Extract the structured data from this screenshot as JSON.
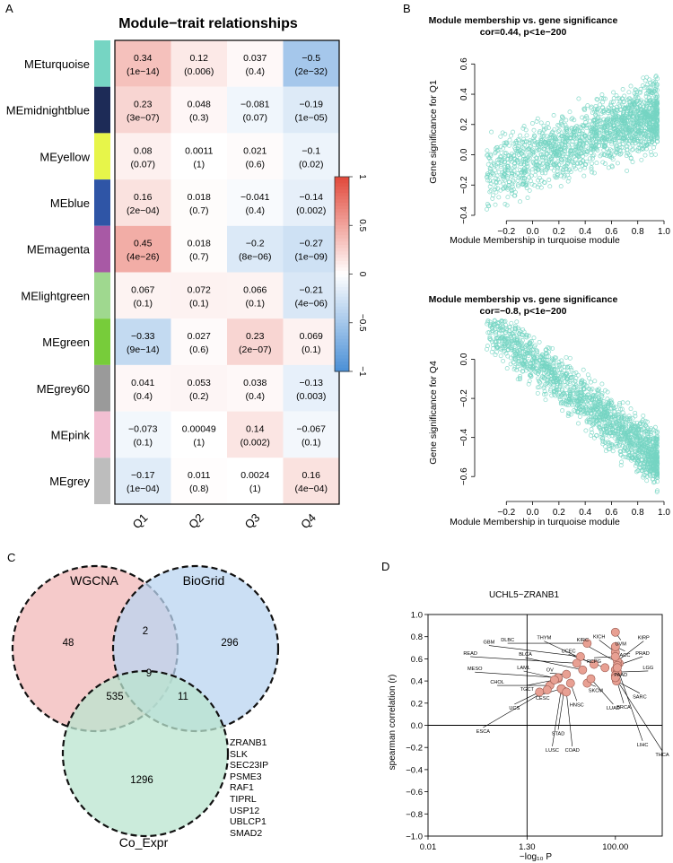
{
  "panels": {
    "A": "A",
    "B": "B",
    "C": "C",
    "D": "D"
  },
  "chart_data": [
    {
      "type": "heatmap",
      "title": "Module−trait relationships",
      "rows": [
        "MEturquoise",
        "MEmidnightblue",
        "MEyellow",
        "MEblue",
        "MEmagenta",
        "MElightgreen",
        "MEgreen",
        "MEgrey60",
        "MEpink",
        "MEgrey"
      ],
      "row_colors": [
        "#76d5c3",
        "#1d2b57",
        "#e7f54a",
        "#2f55a6",
        "#a859a5",
        "#9fd88f",
        "#77cc3a",
        "#9a9a9a",
        "#f2bfd2",
        "#bdbdbd"
      ],
      "columns": [
        "Q1",
        "Q2",
        "Q3",
        "Q4"
      ],
      "values": [
        [
          0.34,
          0.12,
          0.037,
          -0.5
        ],
        [
          0.23,
          0.048,
          -0.081,
          -0.19
        ],
        [
          0.08,
          0.0011,
          0.021,
          -0.1
        ],
        [
          0.16,
          0.018,
          -0.041,
          -0.14
        ],
        [
          0.45,
          0.018,
          -0.2,
          -0.27
        ],
        [
          0.067,
          0.072,
          0.066,
          -0.21
        ],
        [
          -0.33,
          0.027,
          0.23,
          0.069
        ],
        [
          0.041,
          0.053,
          0.038,
          -0.13
        ],
        [
          -0.073,
          0.00049,
          0.14,
          -0.067
        ],
        [
          -0.17,
          0.011,
          0.0024,
          0.16
        ]
      ],
      "value_labels": [
        [
          "0.34",
          "0.12",
          "0.037",
          "−0.5"
        ],
        [
          "0.23",
          "0.048",
          "−0.081",
          "−0.19"
        ],
        [
          "0.08",
          "0.0011",
          "0.021",
          "−0.1"
        ],
        [
          "0.16",
          "0.018",
          "−0.041",
          "−0.14"
        ],
        [
          "0.45",
          "0.018",
          "−0.2",
          "−0.27"
        ],
        [
          "0.067",
          "0.072",
          "0.066",
          "−0.21"
        ],
        [
          "−0.33",
          "0.027",
          "0.23",
          "0.069"
        ],
        [
          "0.041",
          "0.053",
          "0.038",
          "−0.13"
        ],
        [
          "−0.073",
          "0.00049",
          "0.14",
          "−0.067"
        ],
        [
          "−0.17",
          "0.011",
          "0.0024",
          "0.16"
        ]
      ],
      "pvalues": [
        [
          "(1e−14)",
          "(0.006)",
          "(0.4)",
          "(2e−32)"
        ],
        [
          "(3e−07)",
          "(0.3)",
          "(0.07)",
          "(1e−05)"
        ],
        [
          "(0.07)",
          "(1)",
          "(0.6)",
          "(0.02)"
        ],
        [
          "(2e−04)",
          "(0.7)",
          "(0.4)",
          "(0.002)"
        ],
        [
          "(4e−26)",
          "(0.7)",
          "(8e−06)",
          "(1e−09)"
        ],
        [
          "(0.1)",
          "(0.1)",
          "(0.1)",
          "(4e−06)"
        ],
        [
          "(9e−14)",
          "(0.6)",
          "(2e−07)",
          "(0.1)"
        ],
        [
          "(0.4)",
          "(0.2)",
          "(0.4)",
          "(0.003)"
        ],
        [
          "(0.1)",
          "(1)",
          "(0.002)",
          "(0.1)"
        ],
        [
          "(1e−04)",
          "(0.8)",
          "(1)",
          "(4e−04)"
        ]
      ],
      "colorbar": {
        "range": [
          -1,
          1
        ],
        "ticks": [
          "−1",
          "−0.5",
          "0",
          "0.5",
          "1"
        ],
        "low": "#4a8fd6",
        "mid": "#ffffff",
        "high": "#e2483a"
      }
    },
    {
      "type": "scatter",
      "title": "Module membership vs. gene significance",
      "subtitle": "cor=0.44, p<1e−200",
      "xlabel": "Module Membership in turquoise module",
      "ylabel": "Gene significance for  Q1",
      "xlim": [
        -0.4,
        1.0
      ],
      "ylim": [
        -0.4,
        0.75
      ],
      "xticks": [
        "−0.2",
        "0.0",
        "0.2",
        "0.4",
        "0.6",
        "0.8",
        "1.0"
      ],
      "yticks": [
        "−0.4",
        "−0.2",
        "0.0",
        "0.2",
        "0.4",
        "0.6"
      ],
      "point_color": "#76d5c3"
    },
    {
      "type": "scatter",
      "title": "Module membership vs. gene significance",
      "subtitle": "cor=−0.8, p<1e−200",
      "xlabel": "Module Membership in turquoise module",
      "ylabel": "Gene significance for  Q4",
      "xlim": [
        -0.4,
        1.0
      ],
      "ylim": [
        -0.7,
        0.2
      ],
      "xticks": [
        "−0.2",
        "0.0",
        "0.2",
        "0.4",
        "0.6",
        "0.8",
        "1.0"
      ],
      "yticks": [
        "−0.6",
        "−0.4",
        "−0.2",
        "0.0"
      ],
      "point_color": "#76d5c3"
    },
    {
      "type": "venn",
      "sets": [
        "WGCNA",
        "BioGrid",
        "Co_Expr"
      ],
      "set_colors": [
        "#f2b8b8",
        "#b9d4f0",
        "#b9e4cf"
      ],
      "regions": {
        "WGCNA_only": "48",
        "BioGrid_only": "296",
        "Co_Expr_only": "1296",
        "WGCNA_BioGrid": "2",
        "WGCNA_Co_Expr": "535",
        "BioGrid_Co_Expr": "11",
        "all_three": "9"
      },
      "genes_in_all_three": [
        "ZRANB1",
        "SLK",
        "SEC23IP",
        "PSME3",
        "RAF1",
        "TIPRL",
        "USP12",
        "UBLCP1",
        "SMAD2"
      ]
    },
    {
      "type": "scatter",
      "title": "UCHL5~ZRANB1",
      "xlabel": "−log₁₀ P",
      "ylabel": "spearman correlation (r)",
      "xscale": "log",
      "xlim": [
        0.01,
        1000
      ],
      "xticks": [
        {
          "v": 0.01,
          "t": "0.01"
        },
        {
          "v": 1.3,
          "t": "1.30"
        },
        {
          "v": 100,
          "t": "100.00"
        }
      ],
      "ylim": [
        -1.0,
        1.0
      ],
      "yticks": [
        "−1.0",
        "−0.8",
        "−0.6",
        "−0.4",
        "−0.2",
        "0.0",
        "0.2",
        "0.4",
        "0.6",
        "0.8",
        "1.0"
      ],
      "vline_x": 1.3,
      "hline_y": 0.0,
      "point_color": "#e8a093",
      "points": [
        {
          "label": "GBM",
          "x": 18,
          "y": 0.62,
          "lx": 0.2,
          "ly": 0.72
        },
        {
          "label": "DLBC",
          "x": 25,
          "y": 0.74,
          "lx": 0.5,
          "ly": 0.74
        },
        {
          "label": "THYM",
          "x": 35,
          "y": 0.55,
          "lx": 3.0,
          "ly": 0.76
        },
        {
          "label": "KIRC",
          "x": 120,
          "y": 0.56,
          "lx": 20,
          "ly": 0.74
        },
        {
          "label": "KICH",
          "x": 100,
          "y": 0.66,
          "lx": 45,
          "ly": 0.77
        },
        {
          "label": "UVM",
          "x": 100,
          "y": 0.84,
          "lx": 130,
          "ly": 0.77
        },
        {
          "label": "KIRP",
          "x": 110,
          "y": 0.58,
          "lx": 400,
          "ly": 0.76
        },
        {
          "label": "UCEC",
          "x": 60,
          "y": 0.52,
          "lx": 10,
          "ly": 0.64
        },
        {
          "label": "PCPG",
          "x": 100,
          "y": 0.62,
          "lx": 35,
          "ly": 0.61
        },
        {
          "label": "ACC",
          "x": 100,
          "y": 0.71,
          "lx": 160,
          "ly": 0.67
        },
        {
          "label": "PRAD",
          "x": 110,
          "y": 0.54,
          "lx": 380,
          "ly": 0.62
        },
        {
          "label": "BLCA",
          "x": 20,
          "y": 0.5,
          "lx": 1.2,
          "ly": 0.61
        },
        {
          "label": "READ",
          "x": 15,
          "y": 0.56,
          "lx": 0.08,
          "ly": 0.62
        },
        {
          "label": "PAAD",
          "x": 100,
          "y": 0.5,
          "lx": 130,
          "ly": 0.49
        },
        {
          "label": "LGG",
          "x": 110,
          "y": 0.48,
          "lx": 500,
          "ly": 0.49
        },
        {
          "label": "LAML",
          "x": 6,
          "y": 0.42,
          "lx": 1.1,
          "ly": 0.49
        },
        {
          "label": "OV",
          "x": 9,
          "y": 0.46,
          "lx": 4,
          "ly": 0.47
        },
        {
          "label": "MESO",
          "x": 6,
          "y": 0.43,
          "lx": 0.1,
          "ly": 0.48
        },
        {
          "label": "SARC",
          "x": 105,
          "y": 0.4,
          "lx": 330,
          "ly": 0.29
        },
        {
          "label": "SKCM",
          "x": 25,
          "y": 0.38,
          "lx": 38,
          "ly": 0.35
        },
        {
          "label": "CHOL",
          "x": 4,
          "y": 0.36,
          "lx": 0.3,
          "ly": 0.36
        },
        {
          "label": "TGCT",
          "x": 5,
          "y": 0.41,
          "lx": 1.3,
          "ly": 0.36
        },
        {
          "label": "CESC",
          "x": 7,
          "y": 0.33,
          "lx": 2.8,
          "ly": 0.28
        },
        {
          "label": "HNSC",
          "x": 11,
          "y": 0.38,
          "lx": 15,
          "ly": 0.22
        },
        {
          "label": "UCS",
          "x": 2.4,
          "y": 0.3,
          "lx": 0.7,
          "ly": 0.19
        },
        {
          "label": "BRCA",
          "x": 100,
          "y": 0.45,
          "lx": 150,
          "ly": 0.2
        },
        {
          "label": "LUAD",
          "x": 30,
          "y": 0.42,
          "lx": 90,
          "ly": 0.19
        },
        {
          "label": "ESCA",
          "x": 3.5,
          "y": 0.32,
          "lx": 0.15,
          "ly": -0.02
        },
        {
          "label": "STAD",
          "x": 8,
          "y": 0.31,
          "lx": 6,
          "ly": -0.04
        },
        {
          "label": "LIHC",
          "x": 110,
          "y": 0.52,
          "lx": 380,
          "ly": -0.14
        },
        {
          "label": "LUSC",
          "x": 7,
          "y": 0.33,
          "lx": 4.5,
          "ly": -0.19
        },
        {
          "label": "COAD",
          "x": 9,
          "y": 0.3,
          "lx": 12,
          "ly": -0.19
        },
        {
          "label": "THCA",
          "x": 100,
          "y": 0.43,
          "lx": 1000,
          "ly": -0.23
        }
      ]
    }
  ]
}
